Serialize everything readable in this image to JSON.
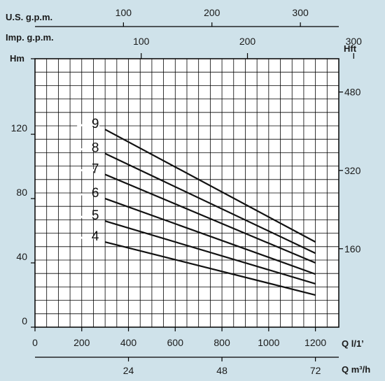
{
  "chart_data": {
    "type": "line",
    "title": "",
    "x_axes": {
      "bottom_primary": {
        "label": "Q l/1’",
        "ticks": [
          0,
          200,
          400,
          600,
          800,
          1000,
          1200
        ],
        "range": [
          0,
          1300
        ]
      },
      "bottom_secondary": {
        "label": "Q m³/h",
        "ticks": [
          "24",
          "48",
          "72"
        ],
        "tick_values_lpm": [
          400,
          800,
          1200
        ]
      },
      "top_us": {
        "label": "U.S. g.p.m.",
        "ticks": [
          "100",
          "200",
          "300"
        ],
        "tick_values_lpm": [
          378.5,
          757.1,
          1135.6
        ]
      },
      "top_imp": {
        "label": "Imp. g.p.m.",
        "ticks": [
          "100",
          "200",
          "300"
        ],
        "tick_values_lpm": [
          454.6,
          909.2,
          1363.8
        ]
      }
    },
    "y_axes": {
      "left": {
        "label": "Hm",
        "ticks": [
          "0",
          "40",
          "80",
          "120"
        ],
        "tick_values": [
          0,
          40,
          80,
          120
        ],
        "range": [
          0,
          167
        ]
      },
      "right": {
        "label": "Hft",
        "ticks": [
          "160",
          "320",
          "480"
        ],
        "tick_values_m": [
          48.8,
          97.5,
          146.3
        ]
      }
    },
    "grid": true,
    "series": [
      {
        "name": "4",
        "x": [
          300,
          1200
        ],
        "y": [
          53,
          20
        ]
      },
      {
        "name": "5",
        "x": [
          300,
          1200
        ],
        "y": [
          66,
          27
        ]
      },
      {
        "name": "6",
        "x": [
          300,
          1200
        ],
        "y": [
          80,
          33
        ]
      },
      {
        "name": "7",
        "x": [
          300,
          1200
        ],
        "y": [
          95,
          40
        ]
      },
      {
        "name": "8",
        "x": [
          300,
          1200
        ],
        "y": [
          108,
          46
        ]
      },
      {
        "name": "9",
        "x": [
          300,
          1200
        ],
        "y": [
          123,
          53
        ]
      }
    ],
    "colors": {
      "background": "#cfe2ea",
      "plot": "#ffffff",
      "grid": "#000000",
      "curve": "#111111"
    }
  }
}
